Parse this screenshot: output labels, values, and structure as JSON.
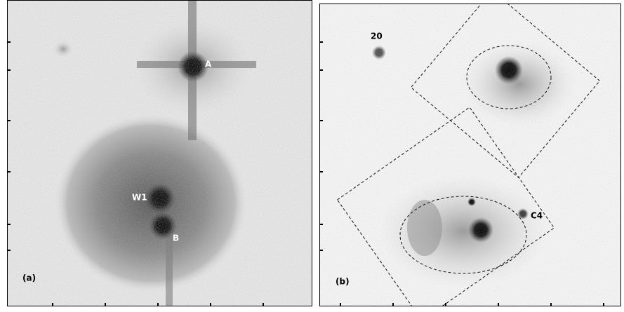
{
  "panels": [
    {
      "label": "(a)",
      "annotations": [
        "A",
        "W1",
        "B"
      ]
    },
    {
      "label": "(b)",
      "annotations": [
        "20",
        "C4"
      ]
    }
  ]
}
